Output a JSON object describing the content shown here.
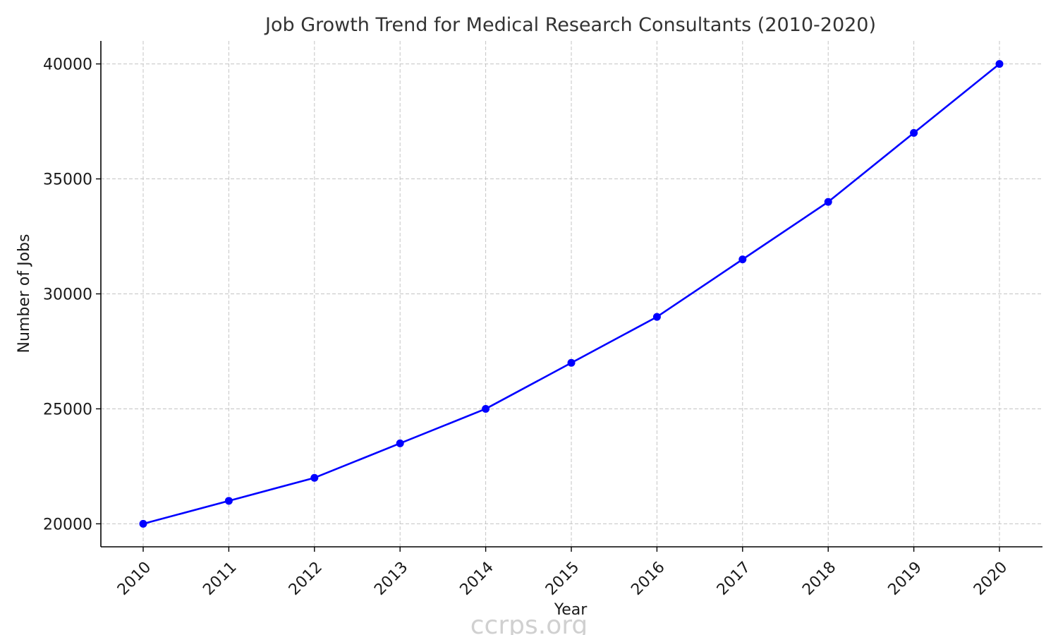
{
  "chart_data": {
    "type": "line",
    "title": "Job Growth Trend for Medical Research Consultants (2010-2020)",
    "xlabel": "Year",
    "ylabel": "Number of Jobs",
    "x": [
      "2010",
      "2011",
      "2012",
      "2013",
      "2014",
      "2015",
      "2016",
      "2017",
      "2018",
      "2019",
      "2020"
    ],
    "series": [
      {
        "values": [
          20000,
          21000,
          22000,
          23500,
          25000,
          27000,
          29000,
          31500,
          34000,
          37000,
          40000
        ],
        "color": "#0000ff",
        "marker": "circle"
      }
    ],
    "ylim": [
      19000,
      41000
    ],
    "yticks": [
      20000,
      25000,
      30000,
      35000,
      40000
    ],
    "grid": true,
    "x_tick_rotation_deg": 45
  },
  "watermark": "ccrps.org"
}
